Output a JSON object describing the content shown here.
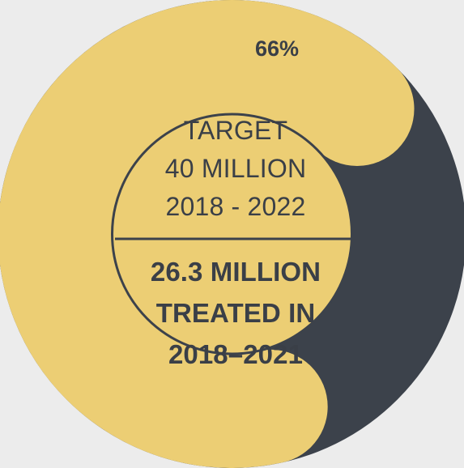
{
  "chart_data": {
    "type": "pie",
    "title": "",
    "progress_percent": 66,
    "progress_label": "66%",
    "target": {
      "label": "TARGET",
      "amount": "40 MILLION",
      "period": "2018 - 2022"
    },
    "result": {
      "line1": "26.3 MILLION",
      "line2": "TREATED IN",
      "line3": "2018–2021"
    },
    "segments": [
      {
        "value": 66,
        "color": "#ecce74"
      },
      {
        "value": 34,
        "color": "#3c424b"
      }
    ]
  },
  "colors": {
    "background": "#ececec",
    "progress": "#ecce74",
    "track": "#3c424b",
    "inner_fill": "#ecce74",
    "inner_stroke": "#3c424b",
    "text": "#3a3f47"
  }
}
